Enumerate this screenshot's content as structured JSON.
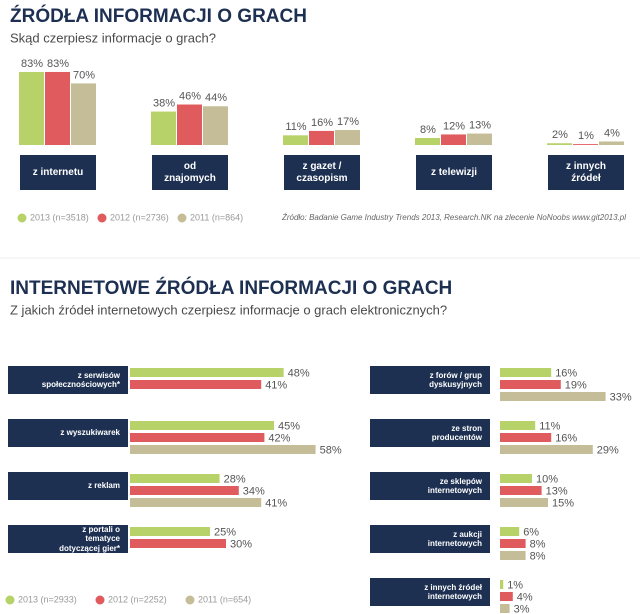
{
  "chart_data": [
    {
      "type": "bar",
      "title": "ŹRÓDŁA INFORMACJI O GRACH",
      "subtitle": "Skąd czerpiesz informacje o grach?",
      "categories": [
        "z internetu",
        "od znajomych",
        "z gazet / czasopism",
        "z telewizji",
        "z innych źródeł"
      ],
      "series": [
        {
          "name": "2013 (n=3518)",
          "color": "#b8d26a",
          "values": [
            83,
            38,
            11,
            8,
            2
          ],
          "value_labels": [
            "83%",
            "38%",
            "11%",
            "8%",
            "2%"
          ]
        },
        {
          "name": "2012 (n=2736)",
          "color": "#e05b5e",
          "values": [
            83,
            46,
            16,
            12,
            1
          ],
          "value_labels": [
            "83%",
            "46%",
            "16%",
            "12%",
            "1%"
          ]
        },
        {
          "name": "2011 (n=864)",
          "color": "#c4bd98",
          "values": [
            70,
            44,
            17,
            13,
            4
          ],
          "value_labels": [
            "70%",
            "44%",
            "17%",
            "13%",
            "4%"
          ]
        }
      ],
      "source": "Źródło: Badanie Game Industry Trends 2013, Research.NK na zlecenie NoNoobs www.git2013.pl"
    },
    {
      "type": "hbar",
      "title": "INTERNETOWE ŹRÓDŁA INFORMACJI O GRACH",
      "subtitle": "Z jakich źródeł internetowych czerpiesz informacje o grach elektronicznych?",
      "categories": [
        "z serwisów społecznościowych*",
        "z wyszukiwarek",
        "z reklam",
        "z portali o tematyce dotyczącej gier*",
        "z forów / grup dyskusyjnych",
        "ze stron producentów",
        "ze sklepów internetowych",
        "z aukcji internetowych",
        "z innych źródeł internetowych"
      ],
      "series": [
        {
          "name": "2013 (n=2933)",
          "color": "#b8d26a",
          "values": [
            48,
            45,
            28,
            25,
            16,
            11,
            10,
            6,
            1
          ],
          "value_labels": [
            "48%",
            "45%",
            "28%",
            "25%",
            "16%",
            "11%",
            "10%",
            "6%",
            "1%"
          ]
        },
        {
          "name": "2012 (n=2252)",
          "color": "#e05b5e",
          "values": [
            41,
            42,
            34,
            30,
            19,
            16,
            13,
            8,
            4
          ],
          "value_labels": [
            "41%",
            "42%",
            "34%",
            "30%",
            "19%",
            "16%",
            "13%",
            "8%",
            "4%"
          ]
        },
        {
          "name": "2011 (n=654)",
          "color": "#c4bd98",
          "values": [
            null,
            58,
            41,
            null,
            33,
            29,
            15,
            8,
            3
          ],
          "value_labels": [
            null,
            "58%",
            "41%",
            null,
            "33%",
            "29%",
            "15%",
            "8%",
            "3%"
          ]
        }
      ]
    }
  ]
}
